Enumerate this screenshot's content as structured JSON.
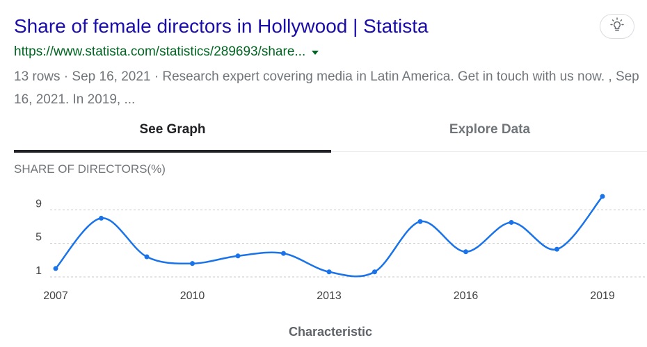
{
  "result": {
    "title": "Share of female directors in Hollywood | Statista",
    "url": "https://www.statista.com/statistics/289693/share...",
    "snippet": "13 rows · Sep 16, 2021 · Research expert covering media in Latin America. Get in touch with us now. , Sep 16, 2021. In 2019, ..."
  },
  "tabs": [
    {
      "label": "See Graph",
      "active": true
    },
    {
      "label": "Explore Data",
      "active": false
    }
  ],
  "icons": {
    "feedback": "lightbulb-icon",
    "url_menu": "caret-down-icon"
  },
  "colors": {
    "title": "#1a0dab",
    "url": "#006621",
    "line": "#1a73e8",
    "text_secondary": "#70757a"
  },
  "chart_data": {
    "type": "line",
    "title": "SHARE OF DIRECTORS(%)",
    "xlabel": "Characteristic",
    "ylabel": "",
    "x": [
      2007,
      2008,
      2009,
      2010,
      2011,
      2012,
      2013,
      2014,
      2015,
      2016,
      2017,
      2018,
      2019
    ],
    "x_ticks": [
      "2007",
      "2010",
      "2013",
      "2016",
      "2019"
    ],
    "y_ticks": [
      1,
      5,
      9
    ],
    "values": [
      2,
      8,
      3.4,
      2.6,
      3.5,
      3.8,
      1.6,
      1.6,
      7.6,
      4,
      7.5,
      4.3,
      10.6
    ],
    "ylim": [
      1,
      10.6
    ],
    "grid": true,
    "legend": "none"
  }
}
